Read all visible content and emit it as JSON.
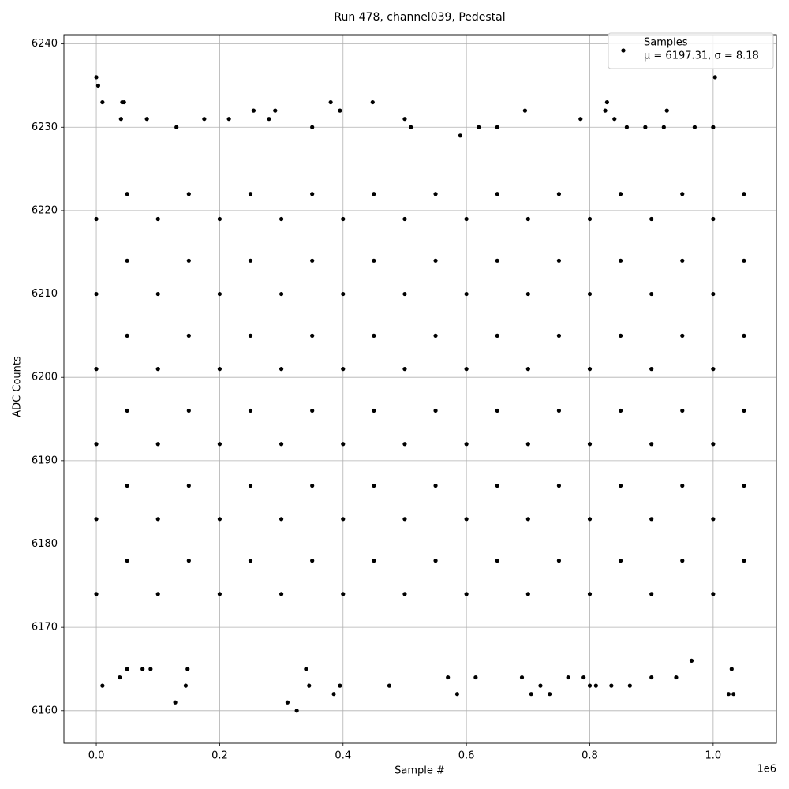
{
  "chart_data": {
    "type": "scatter",
    "title": "Run 478, channel039, Pedestal",
    "x_label": "Sample #",
    "y_label": "ADC Counts",
    "x_offset_label": "1e6",
    "xlim": [
      -52500,
      1102500
    ],
    "ylim": [
      6156.1,
      6241.1
    ],
    "xticks": [
      {
        "value": 0,
        "label": "0.0"
      },
      {
        "value": 200000,
        "label": "0.2"
      },
      {
        "value": 400000,
        "label": "0.4"
      },
      {
        "value": 600000,
        "label": "0.6"
      },
      {
        "value": 800000,
        "label": "0.8"
      },
      {
        "value": 1000000,
        "label": "1.0"
      }
    ],
    "yticks": [
      6160,
      6170,
      6180,
      6190,
      6200,
      6210,
      6220,
      6230,
      6240
    ],
    "grid": true,
    "legend": "upper right",
    "legend_note": "μ = 6197.31, σ = 8.18",
    "series": [
      {
        "name": "Samples",
        "color": "#000000",
        "x": [
          0,
          3000,
          10000,
          42000,
          45000,
          40000,
          82000,
          130000,
          175000,
          215000,
          255000,
          280000,
          290000,
          350000,
          380000,
          395000,
          448000,
          500000,
          510000,
          590000,
          620000,
          650000,
          695000,
          785000,
          825000,
          828000,
          840000,
          860000,
          890000,
          920000,
          925000,
          970000,
          1003000,
          1000000,
          10000,
          38000,
          50000,
          75000,
          88000,
          128000,
          145000,
          148000,
          310000,
          325000,
          340000,
          345000,
          385000,
          395000,
          475000,
          570000,
          585000,
          615000,
          690000,
          705000,
          720000,
          735000,
          765000,
          790000,
          800000,
          810000,
          835000,
          865000,
          900000,
          940000,
          965000,
          1025000,
          1033000,
          1030000,
          0,
          0,
          0,
          0,
          0,
          0,
          50000,
          50000,
          50000,
          50000,
          50000,
          50000,
          100000,
          100000,
          100000,
          100000,
          100000,
          100000,
          150000,
          150000,
          150000,
          150000,
          150000,
          150000,
          200000,
          200000,
          200000,
          200000,
          200000,
          200000,
          250000,
          250000,
          250000,
          250000,
          250000,
          250000,
          300000,
          300000,
          300000,
          300000,
          300000,
          300000,
          350000,
          350000,
          350000,
          350000,
          350000,
          350000,
          400000,
          400000,
          400000,
          400000,
          400000,
          400000,
          450000,
          450000,
          450000,
          450000,
          450000,
          450000,
          500000,
          500000,
          500000,
          500000,
          500000,
          500000,
          550000,
          550000,
          550000,
          550000,
          550000,
          550000,
          600000,
          600000,
          600000,
          600000,
          600000,
          600000,
          650000,
          650000,
          650000,
          650000,
          650000,
          650000,
          700000,
          700000,
          700000,
          700000,
          700000,
          700000,
          750000,
          750000,
          750000,
          750000,
          750000,
          750000,
          800000,
          800000,
          800000,
          800000,
          800000,
          800000,
          850000,
          850000,
          850000,
          850000,
          850000,
          850000,
          900000,
          900000,
          900000,
          900000,
          900000,
          900000,
          950000,
          950000,
          950000,
          950000,
          950000,
          950000,
          1000000,
          1000000,
          1000000,
          1000000,
          1000000,
          1000000,
          1050000,
          1050000,
          1050000,
          1050000,
          1050000,
          1050000
        ],
        "y": [
          6236,
          6235,
          6233,
          6233,
          6233,
          6231,
          6231,
          6230,
          6231,
          6231,
          6232,
          6231,
          6232,
          6230,
          6233,
          6232,
          6233,
          6231,
          6230,
          6229,
          6230,
          6230,
          6232,
          6231,
          6232,
          6233,
          6231,
          6230,
          6230,
          6230,
          6232,
          6230,
          6236,
          6230,
          6163,
          6164,
          6165,
          6165,
          6165,
          6161,
          6163,
          6165,
          6161,
          6160,
          6165,
          6163,
          6162,
          6163,
          6163,
          6164,
          6162,
          6164,
          6164,
          6162,
          6163,
          6162,
          6164,
          6164,
          6163,
          6163,
          6163,
          6163,
          6164,
          6164,
          6166,
          6162,
          6162,
          6165,
          6174,
          6183,
          6192,
          6201,
          6210,
          6219,
          6178,
          6187,
          6196,
          6205,
          6214,
          6222,
          6174,
          6183,
          6192,
          6201,
          6210,
          6219,
          6178,
          6187,
          6196,
          6205,
          6214,
          6222,
          6174,
          6183,
          6192,
          6201,
          6210,
          6219,
          6178,
          6187,
          6196,
          6205,
          6214,
          6222,
          6174,
          6183,
          6192,
          6201,
          6210,
          6219,
          6178,
          6187,
          6196,
          6205,
          6214,
          6222,
          6174,
          6183,
          6192,
          6201,
          6210,
          6219,
          6178,
          6187,
          6196,
          6205,
          6214,
          6222,
          6174,
          6183,
          6192,
          6201,
          6210,
          6219,
          6178,
          6187,
          6196,
          6205,
          6214,
          6222,
          6174,
          6183,
          6192,
          6201,
          6210,
          6219,
          6178,
          6187,
          6196,
          6205,
          6214,
          6222,
          6174,
          6183,
          6192,
          6201,
          6210,
          6219,
          6178,
          6187,
          6196,
          6205,
          6214,
          6222,
          6174,
          6183,
          6192,
          6201,
          6210,
          6219,
          6178,
          6187,
          6196,
          6205,
          6214,
          6222,
          6174,
          6183,
          6192,
          6201,
          6210,
          6219,
          6178,
          6187,
          6196,
          6205,
          6214,
          6222,
          6174,
          6183,
          6192,
          6201,
          6210,
          6219,
          6178,
          6187,
          6196,
          6205,
          6214,
          6222
        ]
      }
    ]
  }
}
